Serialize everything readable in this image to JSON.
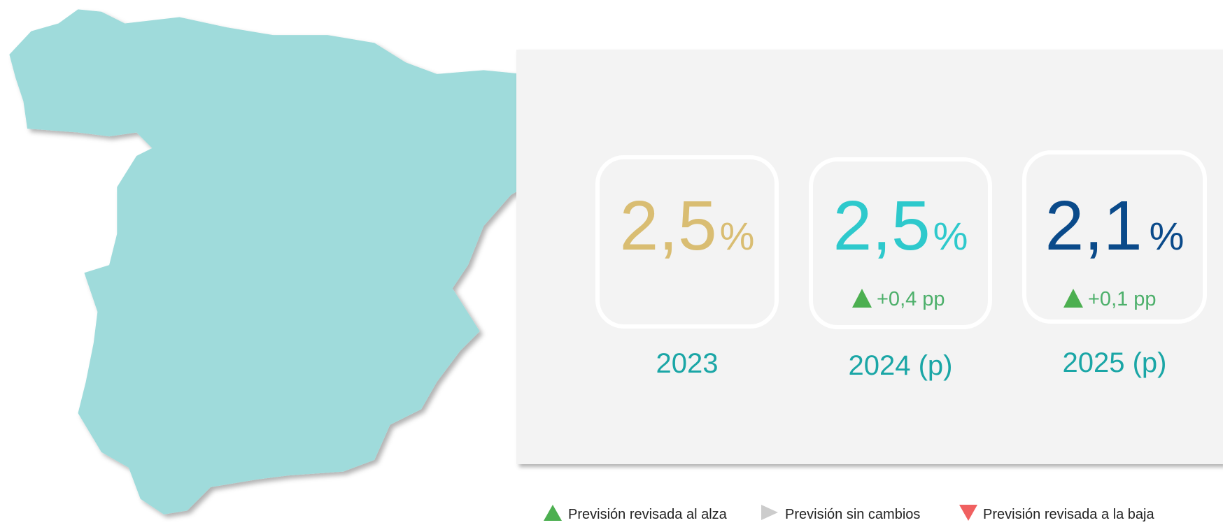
{
  "cards": [
    {
      "value": "2,5",
      "unit": "%",
      "year": "2023"
    },
    {
      "value": "2,5",
      "unit": "%",
      "change": "+0,4 pp",
      "year": "2024 (p)"
    },
    {
      "value": "2,1",
      "unit": "%",
      "change": "+0,1 pp",
      "year": "2025 (p)"
    }
  ],
  "legend": [
    "Previsión revisada al alza",
    "Previsión sin cambios",
    "Previsión revisada a la baja"
  ]
}
